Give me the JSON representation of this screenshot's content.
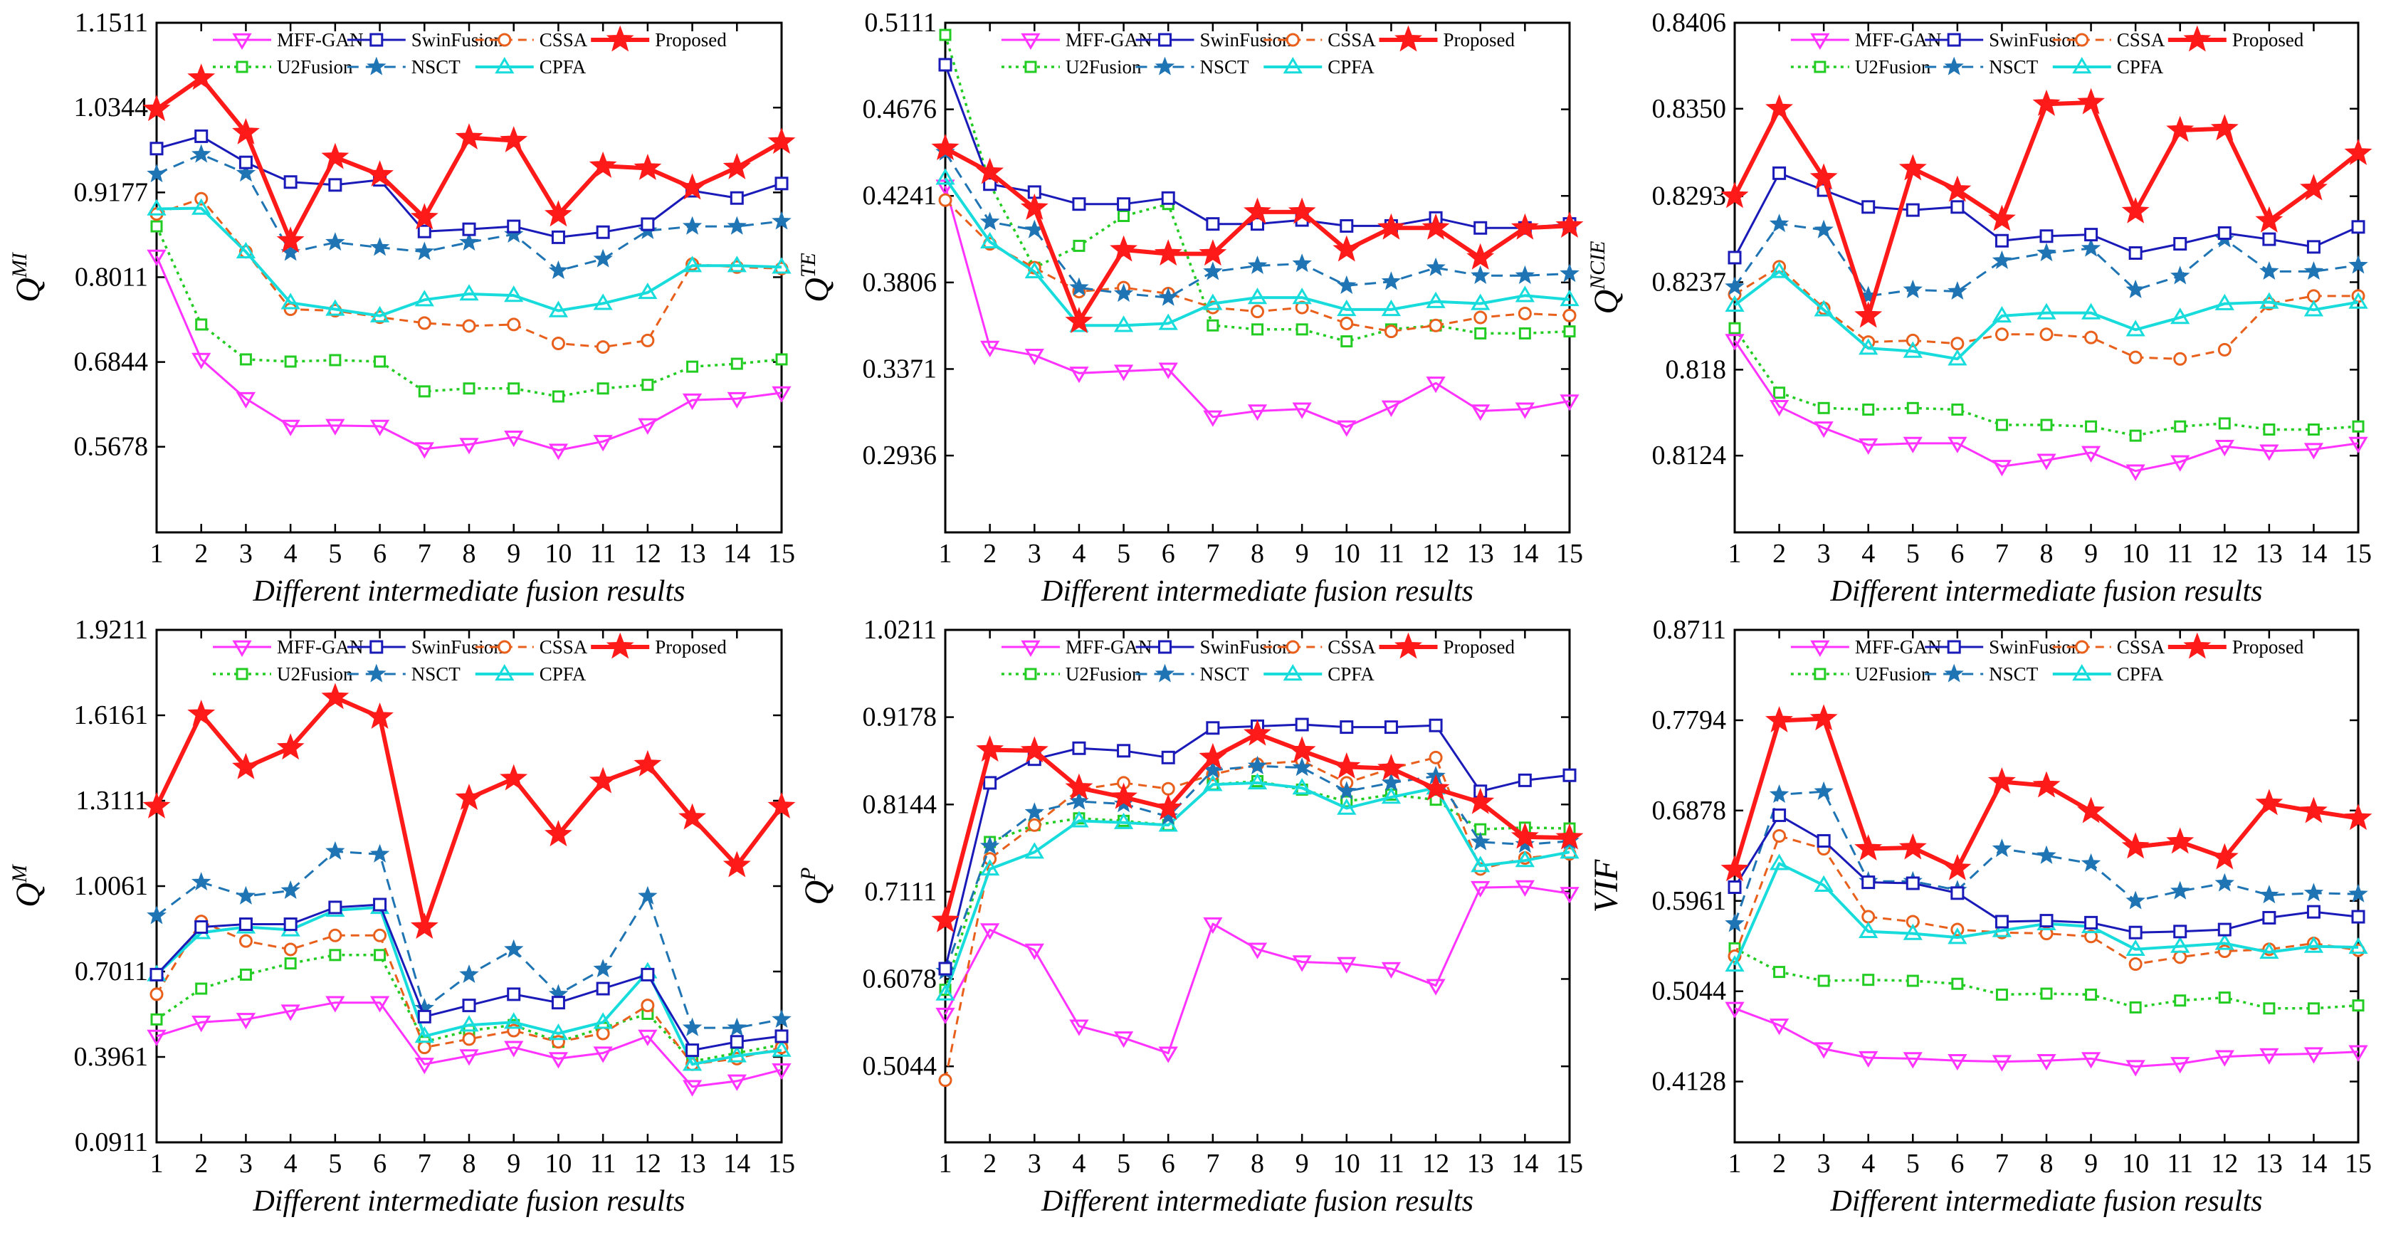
{
  "chart_data": [
    {
      "type": "line",
      "ylabel": {
        "main": "Q",
        "sup": "MI"
      },
      "xlabel": "Different intermediate fusion results",
      "yticks": [
        "0.5678",
        "0.6844",
        "0.8011",
        "0.9177",
        "1.0344",
        "1.1511"
      ],
      "ylim": [
        0.45,
        1.1511
      ],
      "x": [
        1,
        2,
        3,
        4,
        5,
        6,
        7,
        8,
        9,
        10,
        11,
        12,
        13,
        14,
        15
      ],
      "series": [
        {
          "name": "MFF-GAN",
          "values": [
            0.83,
            0.688,
            0.634,
            0.596,
            0.597,
            0.596,
            0.565,
            0.571,
            0.581,
            0.563,
            0.575,
            0.598,
            0.632,
            0.634,
            0.642
          ]
        },
        {
          "name": "SwinFusion",
          "values": [
            0.978,
            0.995,
            0.959,
            0.932,
            0.928,
            0.935,
            0.864,
            0.867,
            0.871,
            0.856,
            0.863,
            0.874,
            0.92,
            0.91,
            0.93
          ]
        },
        {
          "name": "CSSA",
          "values": [
            0.888,
            0.909,
            0.836,
            0.757,
            0.755,
            0.746,
            0.738,
            0.734,
            0.736,
            0.71,
            0.705,
            0.714,
            0.819,
            0.815,
            0.813
          ]
        },
        {
          "name": "Proposed",
          "values": [
            1.032,
            1.075,
            1.0,
            0.851,
            0.966,
            0.942,
            0.883,
            0.993,
            0.989,
            0.887,
            0.954,
            0.951,
            0.924,
            0.952,
            0.987
          ]
        },
        {
          "name": "U2Fusion",
          "values": [
            0.871,
            0.736,
            0.688,
            0.685,
            0.687,
            0.685,
            0.644,
            0.648,
            0.648,
            0.637,
            0.648,
            0.653,
            0.678,
            0.682,
            0.688
          ]
        },
        {
          "name": "NSCT",
          "values": [
            0.943,
            0.97,
            0.944,
            0.835,
            0.849,
            0.842,
            0.836,
            0.849,
            0.86,
            0.81,
            0.826,
            0.865,
            0.871,
            0.871,
            0.878
          ]
        },
        {
          "name": "CPFA",
          "values": [
            0.895,
            0.896,
            0.836,
            0.766,
            0.757,
            0.748,
            0.77,
            0.778,
            0.776,
            0.755,
            0.765,
            0.78,
            0.817,
            0.817,
            0.815
          ]
        }
      ]
    },
    {
      "type": "line",
      "ylabel": {
        "main": "Q",
        "sup": "TE"
      },
      "xlabel": "Different intermediate fusion results",
      "yticks": [
        "0.2936",
        "0.3371",
        "0.3806",
        "0.4241",
        "0.4676",
        "0.5111"
      ],
      "ylim": [
        0.255,
        0.5111
      ],
      "x": [
        1,
        2,
        3,
        4,
        5,
        6,
        7,
        8,
        9,
        10,
        11,
        12,
        13,
        14,
        15
      ],
      "series": [
        {
          "name": "MFF-GAN",
          "values": [
            0.429,
            0.348,
            0.344,
            0.335,
            0.336,
            0.337,
            0.313,
            0.316,
            0.317,
            0.308,
            0.318,
            0.33,
            0.316,
            0.317,
            0.321
          ]
        },
        {
          "name": "SwinFusion",
          "values": [
            0.49,
            0.43,
            0.426,
            0.42,
            0.42,
            0.423,
            0.41,
            0.41,
            0.412,
            0.409,
            0.409,
            0.413,
            0.408,
            0.408,
            0.41
          ]
        },
        {
          "name": "CSSA",
          "values": [
            0.422,
            0.4,
            0.388,
            0.376,
            0.378,
            0.375,
            0.368,
            0.366,
            0.368,
            0.36,
            0.356,
            0.359,
            0.363,
            0.365,
            0.364
          ]
        },
        {
          "name": "Proposed",
          "values": [
            0.448,
            0.436,
            0.418,
            0.361,
            0.397,
            0.395,
            0.395,
            0.416,
            0.416,
            0.397,
            0.408,
            0.408,
            0.393,
            0.408,
            0.409
          ]
        },
        {
          "name": "U2Fusion",
          "values": [
            0.505,
            0.43,
            0.388,
            0.399,
            0.414,
            0.42,
            0.359,
            0.357,
            0.357,
            0.351,
            0.357,
            0.359,
            0.355,
            0.355,
            0.356
          ]
        },
        {
          "name": "NSCT",
          "values": [
            0.446,
            0.411,
            0.407,
            0.378,
            0.375,
            0.373,
            0.386,
            0.389,
            0.39,
            0.379,
            0.381,
            0.388,
            0.384,
            0.384,
            0.385
          ]
        },
        {
          "name": "CPFA",
          "values": [
            0.433,
            0.401,
            0.386,
            0.359,
            0.359,
            0.36,
            0.37,
            0.373,
            0.373,
            0.367,
            0.367,
            0.371,
            0.37,
            0.374,
            0.372
          ]
        }
      ]
    },
    {
      "type": "line",
      "ylabel": {
        "main": "Q",
        "sup": "NCIE"
      },
      "xlabel": "Different intermediate fusion results",
      "yticks": [
        "0.8124",
        "0.818",
        "0.8237",
        "0.8293",
        "0.8350",
        "0.8406"
      ],
      "ylim": [
        0.8074,
        0.8406
      ],
      "x": [
        1,
        2,
        3,
        4,
        5,
        6,
        7,
        8,
        9,
        10,
        11,
        12,
        13,
        14,
        15
      ],
      "series": [
        {
          "name": "MFF-GAN",
          "values": [
            0.8199,
            0.8156,
            0.8142,
            0.8131,
            0.8132,
            0.8132,
            0.8117,
            0.8121,
            0.8126,
            0.8114,
            0.812,
            0.813,
            0.8127,
            0.8128,
            0.8132
          ]
        },
        {
          "name": "SwinFusion",
          "values": [
            0.8253,
            0.8308,
            0.8297,
            0.8286,
            0.8284,
            0.8286,
            0.8264,
            0.8267,
            0.8268,
            0.8256,
            0.8262,
            0.8269,
            0.8265,
            0.826,
            0.8273
          ]
        },
        {
          "name": "CSSA",
          "values": [
            0.8229,
            0.8247,
            0.822,
            0.8198,
            0.8199,
            0.8197,
            0.8203,
            0.8203,
            0.8201,
            0.8188,
            0.8187,
            0.8193,
            0.8223,
            0.8228,
            0.8228
          ]
        },
        {
          "name": "Proposed",
          "values": [
            0.8293,
            0.835,
            0.8305,
            0.8215,
            0.8311,
            0.8297,
            0.8278,
            0.8353,
            0.8354,
            0.8283,
            0.8336,
            0.8337,
            0.8277,
            0.8298,
            0.8321
          ]
        },
        {
          "name": "U2Fusion",
          "values": [
            0.8207,
            0.8165,
            0.8155,
            0.8154,
            0.8155,
            0.8154,
            0.8144,
            0.8144,
            0.8143,
            0.8137,
            0.8143,
            0.8145,
            0.8141,
            0.8141,
            0.8143
          ]
        },
        {
          "name": "NSCT",
          "values": [
            0.8234,
            0.8275,
            0.8271,
            0.8228,
            0.8232,
            0.8231,
            0.8251,
            0.8256,
            0.8259,
            0.8232,
            0.8241,
            0.8265,
            0.8244,
            0.8244,
            0.8248
          ]
        },
        {
          "name": "CPFA",
          "values": [
            0.8222,
            0.8244,
            0.8219,
            0.8194,
            0.8192,
            0.8187,
            0.8215,
            0.8217,
            0.8217,
            0.8206,
            0.8214,
            0.8223,
            0.8224,
            0.8219,
            0.8224
          ]
        }
      ]
    },
    {
      "type": "line",
      "ylabel": {
        "main": "Q",
        "sup": "M"
      },
      "xlabel": "Different intermediate fusion results",
      "yticks": [
        "0.0911",
        "0.3961",
        "0.7011",
        "1.0061",
        "1.3111",
        "1.6161",
        "1.9211"
      ],
      "ylim": [
        0.0911,
        1.9211
      ],
      "x": [
        1,
        2,
        3,
        4,
        5,
        6,
        7,
        8,
        9,
        10,
        11,
        12,
        13,
        14,
        15
      ],
      "series": [
        {
          "name": "MFF-GAN",
          "values": [
            0.47,
            0.52,
            0.53,
            0.56,
            0.59,
            0.59,
            0.37,
            0.4,
            0.43,
            0.39,
            0.41,
            0.47,
            0.29,
            0.31,
            0.35
          ]
        },
        {
          "name": "SwinFusion",
          "values": [
            0.69,
            0.86,
            0.87,
            0.87,
            0.93,
            0.94,
            0.54,
            0.58,
            0.62,
            0.59,
            0.64,
            0.69,
            0.42,
            0.45,
            0.47
          ]
        },
        {
          "name": "CSSA",
          "values": [
            0.62,
            0.88,
            0.81,
            0.78,
            0.83,
            0.83,
            0.43,
            0.46,
            0.49,
            0.45,
            0.48,
            0.58,
            0.37,
            0.39,
            0.43
          ]
        },
        {
          "name": "Proposed",
          "values": [
            1.29,
            1.62,
            1.43,
            1.5,
            1.68,
            1.61,
            0.86,
            1.32,
            1.39,
            1.19,
            1.38,
            1.44,
            1.25,
            1.08,
            1.29
          ]
        },
        {
          "name": "U2Fusion",
          "values": [
            0.53,
            0.64,
            0.69,
            0.73,
            0.76,
            0.76,
            0.45,
            0.49,
            0.51,
            0.45,
            0.5,
            0.55,
            0.38,
            0.41,
            0.44
          ]
        },
        {
          "name": "NSCT",
          "values": [
            0.9,
            1.02,
            0.97,
            0.99,
            1.13,
            1.12,
            0.57,
            0.69,
            0.78,
            0.62,
            0.71,
            0.97,
            0.5,
            0.5,
            0.53
          ]
        },
        {
          "name": "CPFA",
          "values": [
            0.69,
            0.84,
            0.86,
            0.85,
            0.92,
            0.93,
            0.47,
            0.51,
            0.52,
            0.48,
            0.52,
            0.7,
            0.37,
            0.4,
            0.42
          ]
        }
      ]
    },
    {
      "type": "line",
      "ylabel": {
        "main": "Q",
        "sup": "P"
      },
      "xlabel": "Different intermediate fusion results",
      "yticks": [
        "0.5044",
        "0.6078",
        "0.7111",
        "0.8144",
        "0.9178",
        "1.0211"
      ],
      "ylim": [
        0.4144,
        1.0211
      ],
      "x": [
        1,
        2,
        3,
        4,
        5,
        6,
        7,
        8,
        9,
        10,
        11,
        12,
        13,
        14,
        15
      ],
      "series": [
        {
          "name": "MFF-GAN",
          "values": [
            0.566,
            0.666,
            0.642,
            0.552,
            0.538,
            0.52,
            0.673,
            0.643,
            0.628,
            0.626,
            0.62,
            0.6,
            0.716,
            0.717,
            0.709
          ]
        },
        {
          "name": "SwinFusion",
          "values": [
            0.62,
            0.84,
            0.868,
            0.881,
            0.878,
            0.87,
            0.905,
            0.907,
            0.909,
            0.906,
            0.906,
            0.908,
            0.83,
            0.843,
            0.849
          ]
        },
        {
          "name": "CSSA",
          "values": [
            0.488,
            0.75,
            0.79,
            0.832,
            0.84,
            0.833,
            0.85,
            0.862,
            0.866,
            0.84,
            0.857,
            0.87,
            0.738,
            0.751,
            0.756
          ]
        },
        {
          "name": "Proposed",
          "values": [
            0.677,
            0.879,
            0.878,
            0.834,
            0.823,
            0.81,
            0.87,
            0.898,
            0.878,
            0.859,
            0.857,
            0.833,
            0.817,
            0.776,
            0.775
          ]
        },
        {
          "name": "U2Fusion",
          "values": [
            0.595,
            0.77,
            0.79,
            0.798,
            0.795,
            0.79,
            0.838,
            0.842,
            0.832,
            0.818,
            0.826,
            0.82,
            0.785,
            0.787,
            0.786
          ]
        },
        {
          "name": "NSCT",
          "values": [
            0.617,
            0.765,
            0.805,
            0.818,
            0.815,
            0.8,
            0.855,
            0.86,
            0.858,
            0.83,
            0.84,
            0.848,
            0.77,
            0.767,
            0.771
          ]
        },
        {
          "name": "CPFA",
          "values": [
            0.59,
            0.738,
            0.758,
            0.795,
            0.793,
            0.79,
            0.838,
            0.84,
            0.834,
            0.81,
            0.823,
            0.834,
            0.742,
            0.748,
            0.758
          ]
        }
      ]
    },
    {
      "type": "line",
      "ylabel": {
        "main": "VIF",
        "sup": ""
      },
      "xlabel": "Different intermediate fusion results",
      "yticks": [
        "0.4128",
        "0.5044",
        "0.5961",
        "0.6878",
        "0.7794",
        "0.8711"
      ],
      "ylim": [
        0.3511,
        0.8711
      ],
      "x": [
        1,
        2,
        3,
        4,
        5,
        6,
        7,
        8,
        9,
        10,
        11,
        12,
        13,
        14,
        15
      ],
      "series": [
        {
          "name": "MFF-GAN",
          "values": [
            0.487,
            0.47,
            0.446,
            0.437,
            0.436,
            0.434,
            0.433,
            0.434,
            0.436,
            0.428,
            0.431,
            0.438,
            0.44,
            0.441,
            0.443
          ]
        },
        {
          "name": "SwinFusion",
          "values": [
            0.61,
            0.683,
            0.657,
            0.615,
            0.614,
            0.604,
            0.575,
            0.576,
            0.574,
            0.564,
            0.565,
            0.567,
            0.579,
            0.585,
            0.58
          ]
        },
        {
          "name": "CSSA",
          "values": [
            0.54,
            0.662,
            0.649,
            0.58,
            0.575,
            0.567,
            0.564,
            0.563,
            0.56,
            0.532,
            0.539,
            0.545,
            0.547,
            0.553,
            0.546
          ]
        },
        {
          "name": "Proposed",
          "values": [
            0.628,
            0.779,
            0.781,
            0.649,
            0.65,
            0.629,
            0.717,
            0.713,
            0.687,
            0.651,
            0.656,
            0.64,
            0.695,
            0.687,
            0.68
          ]
        },
        {
          "name": "U2Fusion",
          "values": [
            0.548,
            0.524,
            0.515,
            0.516,
            0.515,
            0.512,
            0.501,
            0.502,
            0.501,
            0.488,
            0.495,
            0.498,
            0.487,
            0.487,
            0.49
          ]
        },
        {
          "name": "NSCT",
          "values": [
            0.573,
            0.704,
            0.707,
            0.616,
            0.616,
            0.607,
            0.649,
            0.642,
            0.634,
            0.596,
            0.606,
            0.614,
            0.602,
            0.604,
            0.603
          ]
        },
        {
          "name": "CPFA",
          "values": [
            0.531,
            0.634,
            0.612,
            0.565,
            0.563,
            0.559,
            0.566,
            0.573,
            0.57,
            0.547,
            0.55,
            0.553,
            0.544,
            0.55,
            0.549
          ]
        }
      ]
    }
  ],
  "legend": [
    {
      "name": "MFF-GAN",
      "color": "#ff33ff",
      "dash": "",
      "marker": "triangle-down",
      "width": 3
    },
    {
      "name": "SwinFusion",
      "color": "#1a1ab8",
      "dash": "",
      "marker": "square",
      "width": 3
    },
    {
      "name": "CSSA",
      "color": "#e8601c",
      "dash": "12 8",
      "marker": "circle",
      "width": 3
    },
    {
      "name": "Proposed",
      "color": "#ff1a1a",
      "dash": "",
      "marker": "star",
      "width": 6
    },
    {
      "name": "U2Fusion",
      "color": "#22cc22",
      "dash": "4 6",
      "marker": "square-open",
      "width": 3.5
    },
    {
      "name": "NSCT",
      "color": "#1f74b4",
      "dash": "16 10",
      "marker": "star-small",
      "width": 3
    },
    {
      "name": "CPFA",
      "color": "#18dcdc",
      "dash": "",
      "marker": "triangle-up",
      "width": 4
    }
  ]
}
